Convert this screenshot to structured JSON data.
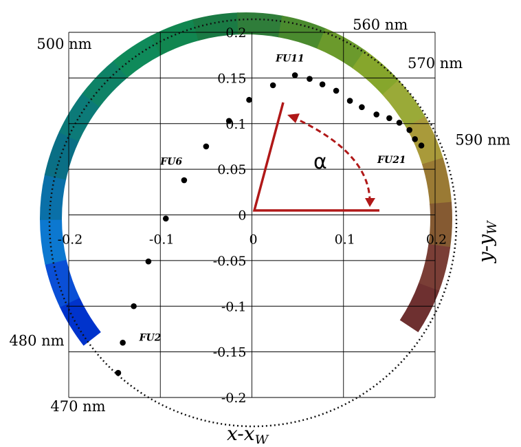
{
  "chart_data": {
    "type": "scatter",
    "xlabel": "x-x",
    "xlabel_sub": "W",
    "ylabel": "y-y",
    "ylabel_sub": "W",
    "xlim": [
      -0.2,
      0.2
    ],
    "ylim": [
      -0.2,
      0.2
    ],
    "xticks": [
      {
        "v": -0.2,
        "label": "-0.2"
      },
      {
        "v": -0.1,
        "label": "-0.1"
      },
      {
        "v": 0,
        "label": "0"
      },
      {
        "v": 0.1,
        "label": "0.1"
      },
      {
        "v": 0.2,
        "label": "0.2"
      }
    ],
    "yticks": [
      {
        "v": 0.2,
        "label": "0.2"
      },
      {
        "v": 0.15,
        "label": "0.15"
      },
      {
        "v": 0.1,
        "label": "0.1"
      },
      {
        "v": 0.05,
        "label": "0.05"
      },
      {
        "v": 0,
        "label": "0"
      },
      {
        "v": -0.05,
        "label": "-0.05"
      },
      {
        "v": -0.1,
        "label": "-0.1"
      },
      {
        "v": -0.15,
        "label": "-0.15"
      },
      {
        "v": -0.2,
        "label": "-0.2"
      }
    ],
    "grid": true,
    "points": [
      {
        "x": -0.146,
        "y": -0.173
      },
      {
        "x": -0.141,
        "y": -0.14
      },
      {
        "x": -0.129,
        "y": -0.1
      },
      {
        "x": -0.113,
        "y": -0.051
      },
      {
        "x": -0.094,
        "y": -0.004
      },
      {
        "x": -0.074,
        "y": 0.038
      },
      {
        "x": -0.05,
        "y": 0.075
      },
      {
        "x": -0.025,
        "y": 0.103
      },
      {
        "x": -0.003,
        "y": 0.126
      },
      {
        "x": 0.023,
        "y": 0.142
      },
      {
        "x": 0.047,
        "y": 0.153
      },
      {
        "x": 0.063,
        "y": 0.149
      },
      {
        "x": 0.077,
        "y": 0.143
      },
      {
        "x": 0.092,
        "y": 0.136
      },
      {
        "x": 0.107,
        "y": 0.125
      },
      {
        "x": 0.12,
        "y": 0.118
      },
      {
        "x": 0.136,
        "y": 0.11
      },
      {
        "x": 0.15,
        "y": 0.106
      },
      {
        "x": 0.161,
        "y": 0.101
      },
      {
        "x": 0.172,
        "y": 0.093
      },
      {
        "x": 0.178,
        "y": 0.083
      },
      {
        "x": 0.185,
        "y": 0.076
      }
    ],
    "point_labels": [
      {
        "text": "FU2",
        "x": -0.123,
        "y": -0.138
      },
      {
        "text": "FU6",
        "x": -0.1,
        "y": 0.055
      },
      {
        "text": "FU11",
        "x": 0.026,
        "y": 0.168
      },
      {
        "text": "FU21",
        "x": 0.137,
        "y": 0.057
      }
    ],
    "wavelength_labels": [
      {
        "text": "500 nm",
        "x": -0.235,
        "y": 0.182
      },
      {
        "text": "560 nm",
        "x": 0.11,
        "y": 0.203
      },
      {
        "text": "570 nm",
        "x": 0.17,
        "y": 0.161
      },
      {
        "text": "590 nm",
        "x": 0.222,
        "y": 0.077
      },
      {
        "text": "480 nm",
        "x": -0.265,
        "y": -0.143
      },
      {
        "text": "470 nm",
        "x": -0.22,
        "y": -0.215
      }
    ],
    "angle_label": "α",
    "colors": {
      "marker": "#000000",
      "angle": "#b01818",
      "grid": "#000000",
      "ring": [
        "#0033cc",
        "#0a4fd6",
        "#0c78d0",
        "#0a70a8",
        "#0a6f85",
        "#0c7a78",
        "#0e8266",
        "#0f8a5a",
        "#118650",
        "#1a7a44",
        "#2f7d3a",
        "#4a8a2e",
        "#6b9a2c",
        "#86a62c",
        "#9aaa38",
        "#a99a3a",
        "#9a7a34",
        "#855a32",
        "#7a3e36",
        "#6e3030"
      ]
    }
  }
}
